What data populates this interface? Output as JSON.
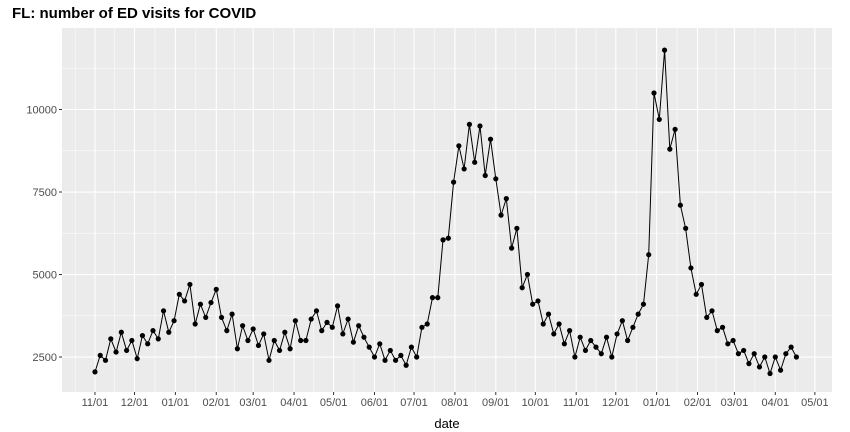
{
  "chart_data": {
    "type": "line",
    "title": "FL: number of ED visits for COVID",
    "xlabel": "date",
    "ylabel": "",
    "xlim": [
      "2020-10-07",
      "2022-05-14"
    ],
    "ylim": [
      1440,
      12470
    ],
    "grid": true,
    "markers": true,
    "x_ticks": [
      {
        "date": "2020-11-01",
        "label": "11/01"
      },
      {
        "date": "2020-12-01",
        "label": "12/01"
      },
      {
        "date": "2021-01-01",
        "label": "01/01"
      },
      {
        "date": "2021-02-01",
        "label": "02/01"
      },
      {
        "date": "2021-03-01",
        "label": "03/01"
      },
      {
        "date": "2021-04-01",
        "label": "04/01"
      },
      {
        "date": "2021-05-01",
        "label": "05/01"
      },
      {
        "date": "2021-06-01",
        "label": "06/01"
      },
      {
        "date": "2021-07-01",
        "label": "07/01"
      },
      {
        "date": "2021-08-01",
        "label": "08/01"
      },
      {
        "date": "2021-09-01",
        "label": "09/01"
      },
      {
        "date": "2021-10-01",
        "label": "10/01"
      },
      {
        "date": "2021-11-01",
        "label": "11/01"
      },
      {
        "date": "2021-12-01",
        "label": "12/01"
      },
      {
        "date": "2022-01-01",
        "label": "01/01"
      },
      {
        "date": "2022-02-01",
        "label": "02/01"
      },
      {
        "date": "2022-03-01",
        "label": "03/01"
      },
      {
        "date": "2022-04-01",
        "label": "04/01"
      },
      {
        "date": "2022-05-01",
        "label": "05/01"
      }
    ],
    "y_ticks": [
      2500,
      5000,
      7500,
      10000
    ],
    "y_tick_labels": [
      "2500",
      "5000",
      "7500",
      "10000"
    ],
    "series": [
      {
        "color": "#000000",
        "points": [
          [
            "2020-11-01",
            2050
          ],
          [
            "2020-11-05",
            2550
          ],
          [
            "2020-11-09",
            2400
          ],
          [
            "2020-11-13",
            3050
          ],
          [
            "2020-11-17",
            2650
          ],
          [
            "2020-11-21",
            3250
          ],
          [
            "2020-11-25",
            2700
          ],
          [
            "2020-11-29",
            3000
          ],
          [
            "2020-12-03",
            2450
          ],
          [
            "2020-12-07",
            3150
          ],
          [
            "2020-12-11",
            2900
          ],
          [
            "2020-12-15",
            3300
          ],
          [
            "2020-12-19",
            3050
          ],
          [
            "2020-12-23",
            3900
          ],
          [
            "2020-12-27",
            3250
          ],
          [
            "2020-12-31",
            3600
          ],
          [
            "2021-01-04",
            4400
          ],
          [
            "2021-01-08",
            4200
          ],
          [
            "2021-01-12",
            4700
          ],
          [
            "2021-01-16",
            3500
          ],
          [
            "2021-01-20",
            4100
          ],
          [
            "2021-01-24",
            3700
          ],
          [
            "2021-01-28",
            4150
          ],
          [
            "2021-02-01",
            4550
          ],
          [
            "2021-02-05",
            3700
          ],
          [
            "2021-02-09",
            3300
          ],
          [
            "2021-02-13",
            3800
          ],
          [
            "2021-02-17",
            2750
          ],
          [
            "2021-02-21",
            3450
          ],
          [
            "2021-02-25",
            3000
          ],
          [
            "2021-03-01",
            3350
          ],
          [
            "2021-03-05",
            2850
          ],
          [
            "2021-03-09",
            3200
          ],
          [
            "2021-03-13",
            2400
          ],
          [
            "2021-03-17",
            3000
          ],
          [
            "2021-03-21",
            2700
          ],
          [
            "2021-03-25",
            3250
          ],
          [
            "2021-03-29",
            2750
          ],
          [
            "2021-04-02",
            3600
          ],
          [
            "2021-04-06",
            3000
          ],
          [
            "2021-04-10",
            3000
          ],
          [
            "2021-04-14",
            3650
          ],
          [
            "2021-04-18",
            3900
          ],
          [
            "2021-04-22",
            3300
          ],
          [
            "2021-04-26",
            3550
          ],
          [
            "2021-04-30",
            3400
          ],
          [
            "2021-05-04",
            4050
          ],
          [
            "2021-05-08",
            3200
          ],
          [
            "2021-05-12",
            3650
          ],
          [
            "2021-05-16",
            2950
          ],
          [
            "2021-05-20",
            3450
          ],
          [
            "2021-05-24",
            3100
          ],
          [
            "2021-05-28",
            2800
          ],
          [
            "2021-06-01",
            2500
          ],
          [
            "2021-06-05",
            2900
          ],
          [
            "2021-06-09",
            2400
          ],
          [
            "2021-06-13",
            2700
          ],
          [
            "2021-06-17",
            2400
          ],
          [
            "2021-06-21",
            2550
          ],
          [
            "2021-06-25",
            2250
          ],
          [
            "2021-06-29",
            2800
          ],
          [
            "2021-07-03",
            2500
          ],
          [
            "2021-07-07",
            3400
          ],
          [
            "2021-07-11",
            3500
          ],
          [
            "2021-07-15",
            4300
          ],
          [
            "2021-07-19",
            4300
          ],
          [
            "2021-07-23",
            6050
          ],
          [
            "2021-07-27",
            6100
          ],
          [
            "2021-07-31",
            7800
          ],
          [
            "2021-08-04",
            8900
          ],
          [
            "2021-08-08",
            8200
          ],
          [
            "2021-08-12",
            9550
          ],
          [
            "2021-08-16",
            8400
          ],
          [
            "2021-08-20",
            9500
          ],
          [
            "2021-08-24",
            8000
          ],
          [
            "2021-08-28",
            9100
          ],
          [
            "2021-09-01",
            7900
          ],
          [
            "2021-09-05",
            6800
          ],
          [
            "2021-09-09",
            7300
          ],
          [
            "2021-09-13",
            5800
          ],
          [
            "2021-09-17",
            6400
          ],
          [
            "2021-09-21",
            4600
          ],
          [
            "2021-09-25",
            5000
          ],
          [
            "2021-09-29",
            4100
          ],
          [
            "2021-10-03",
            4200
          ],
          [
            "2021-10-07",
            3500
          ],
          [
            "2021-10-11",
            3800
          ],
          [
            "2021-10-15",
            3200
          ],
          [
            "2021-10-19",
            3500
          ],
          [
            "2021-10-23",
            2900
          ],
          [
            "2021-10-27",
            3300
          ],
          [
            "2021-10-31",
            2500
          ],
          [
            "2021-11-04",
            3100
          ],
          [
            "2021-11-08",
            2700
          ],
          [
            "2021-11-12",
            3000
          ],
          [
            "2021-11-16",
            2800
          ],
          [
            "2021-11-20",
            2600
          ],
          [
            "2021-11-24",
            3100
          ],
          [
            "2021-11-28",
            2500
          ],
          [
            "2021-12-02",
            3200
          ],
          [
            "2021-12-06",
            3600
          ],
          [
            "2021-12-10",
            3000
          ],
          [
            "2021-12-14",
            3400
          ],
          [
            "2021-12-18",
            3800
          ],
          [
            "2021-12-22",
            4100
          ],
          [
            "2021-12-26",
            5600
          ],
          [
            "2021-12-30",
            10500
          ],
          [
            "2022-01-03",
            9700
          ],
          [
            "2022-01-07",
            11800
          ],
          [
            "2022-01-11",
            8800
          ],
          [
            "2022-01-15",
            9400
          ],
          [
            "2022-01-19",
            7100
          ],
          [
            "2022-01-23",
            6400
          ],
          [
            "2022-01-27",
            5200
          ],
          [
            "2022-01-31",
            4400
          ],
          [
            "2022-02-04",
            4700
          ],
          [
            "2022-02-08",
            3700
          ],
          [
            "2022-02-12",
            3900
          ],
          [
            "2022-02-16",
            3300
          ],
          [
            "2022-02-20",
            3400
          ],
          [
            "2022-02-24",
            2900
          ],
          [
            "2022-02-28",
            3000
          ],
          [
            "2022-03-04",
            2600
          ],
          [
            "2022-03-08",
            2700
          ],
          [
            "2022-03-12",
            2300
          ],
          [
            "2022-03-16",
            2600
          ],
          [
            "2022-03-20",
            2200
          ],
          [
            "2022-03-24",
            2500
          ],
          [
            "2022-03-28",
            2000
          ],
          [
            "2022-04-01",
            2500
          ],
          [
            "2022-04-05",
            2100
          ],
          [
            "2022-04-09",
            2600
          ],
          [
            "2022-04-13",
            2800
          ],
          [
            "2022-04-17",
            2500
          ]
        ]
      }
    ]
  }
}
